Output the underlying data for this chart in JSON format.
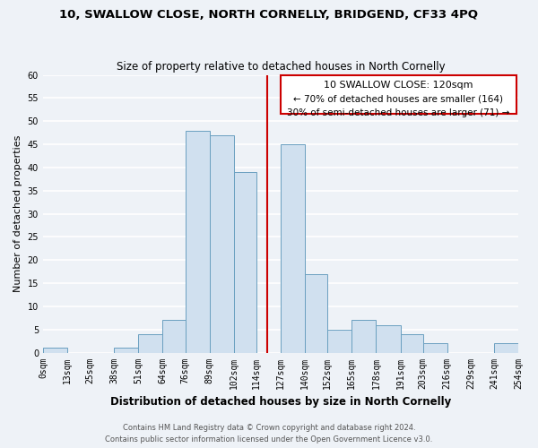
{
  "title": "10, SWALLOW CLOSE, NORTH CORNELLY, BRIDGEND, CF33 4PQ",
  "subtitle": "Size of property relative to detached houses in North Cornelly",
  "xlabel": "Distribution of detached houses by size in North Cornelly",
  "ylabel": "Number of detached properties",
  "bin_edges": [
    0,
    13,
    25,
    38,
    51,
    64,
    76,
    89,
    102,
    114,
    127,
    140,
    152,
    165,
    178,
    191,
    203,
    216,
    229,
    241,
    254
  ],
  "bin_counts": [
    1,
    0,
    0,
    1,
    4,
    7,
    48,
    47,
    39,
    0,
    45,
    17,
    5,
    7,
    6,
    4,
    2,
    0,
    0,
    2
  ],
  "tick_labels": [
    "0sqm",
    "13sqm",
    "25sqm",
    "38sqm",
    "51sqm",
    "64sqm",
    "76sqm",
    "89sqm",
    "102sqm",
    "114sqm",
    "127sqm",
    "140sqm",
    "152sqm",
    "165sqm",
    "178sqm",
    "191sqm",
    "203sqm",
    "216sqm",
    "229sqm",
    "241sqm",
    "254sqm"
  ],
  "bar_color": "#d0e0ef",
  "bar_edge_color": "#6a9fc0",
  "vline_x": 120,
  "vline_color": "#cc0000",
  "ylim": [
    0,
    60
  ],
  "yticks": [
    0,
    5,
    10,
    15,
    20,
    25,
    30,
    35,
    40,
    45,
    50,
    55,
    60
  ],
  "annotation_title": "10 SWALLOW CLOSE: 120sqm",
  "annotation_line1": "← 70% of detached houses are smaller (164)",
  "annotation_line2": "30% of semi-detached houses are larger (71) →",
  "footer_line1": "Contains HM Land Registry data © Crown copyright and database right 2024.",
  "footer_line2": "Contains public sector information licensed under the Open Government Licence v3.0.",
  "background_color": "#eef2f7",
  "grid_color": "#ffffff",
  "title_fontsize": 9.5,
  "subtitle_fontsize": 8.5,
  "ylabel_fontsize": 8,
  "xlabel_fontsize": 8.5,
  "tick_fontsize": 7,
  "footer_fontsize": 6,
  "annot_fontsize": 8
}
